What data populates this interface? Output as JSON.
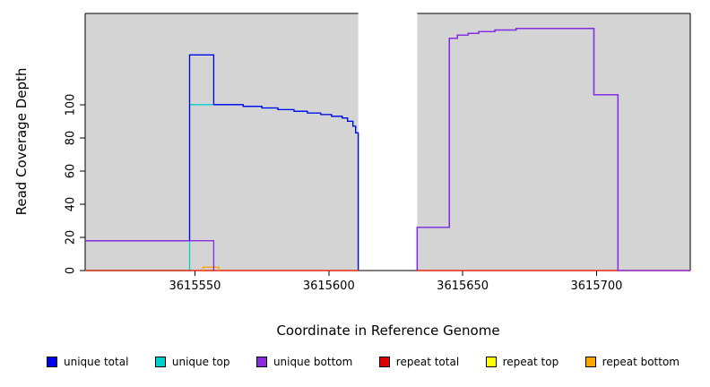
{
  "chart_data": {
    "type": "line",
    "subtype": "step-coverage",
    "xlabel": "Coordinate in Reference Genome",
    "ylabel": "Read Coverage Depth",
    "xlim": [
      3615509,
      3615735
    ],
    "ylim": [
      0,
      155
    ],
    "xticks": [
      3615550,
      3615600,
      3615650,
      3615700
    ],
    "yticks": [
      0,
      20,
      40,
      60,
      80,
      100
    ],
    "grid": false,
    "region_color": "#d4d4d4",
    "regions": [
      {
        "x0": 3615509,
        "x1": 3615611
      },
      {
        "x0": 3615633,
        "x1": 3615735
      }
    ],
    "series": [
      {
        "id": "unique-top",
        "name": "unique top",
        "color": "#00CDCD",
        "segments": [
          [
            [
              3615509,
              0
            ],
            [
              3615548,
              0
            ],
            [
              3615548,
              100
            ],
            [
              3615568,
              100
            ],
            [
              3615568,
              99
            ],
            [
              3615575,
              99
            ],
            [
              3615575,
              98
            ],
            [
              3615581,
              98
            ],
            [
              3615581,
              97
            ],
            [
              3615587,
              97
            ],
            [
              3615587,
              96
            ],
            [
              3615592,
              96
            ],
            [
              3615592,
              95
            ],
            [
              3615597,
              95
            ],
            [
              3615597,
              94
            ],
            [
              3615601,
              94
            ],
            [
              3615601,
              93
            ],
            [
              3615605,
              93
            ],
            [
              3615605,
              92
            ],
            [
              3615607,
              92
            ],
            [
              3615607,
              90
            ],
            [
              3615609,
              90
            ],
            [
              3615609,
              87
            ],
            [
              3615610,
              87
            ],
            [
              3615610,
              83
            ],
            [
              3615611,
              83
            ],
            [
              3615611,
              0
            ]
          ]
        ]
      },
      {
        "id": "unique-total",
        "name": "unique total",
        "color": "#0000EE",
        "segments": [
          [
            [
              3615509,
              18
            ],
            [
              3615548,
              18
            ],
            [
              3615548,
              130
            ],
            [
              3615557,
              130
            ],
            [
              3615557,
              100
            ],
            [
              3615568,
              100
            ],
            [
              3615568,
              99
            ],
            [
              3615575,
              99
            ],
            [
              3615575,
              98
            ],
            [
              3615581,
              98
            ],
            [
              3615581,
              97
            ],
            [
              3615587,
              97
            ],
            [
              3615587,
              96
            ],
            [
              3615592,
              96
            ],
            [
              3615592,
              95
            ],
            [
              3615597,
              95
            ],
            [
              3615597,
              94
            ],
            [
              3615601,
              94
            ],
            [
              3615601,
              93
            ],
            [
              3615605,
              93
            ],
            [
              3615605,
              92
            ],
            [
              3615607,
              92
            ],
            [
              3615607,
              90
            ],
            [
              3615609,
              90
            ],
            [
              3615609,
              87
            ],
            [
              3615610,
              87
            ],
            [
              3615610,
              83
            ],
            [
              3615611,
              83
            ],
            [
              3615611,
              0
            ]
          ],
          [
            [
              3615633,
              0
            ],
            [
              3615633,
              26
            ],
            [
              3615645,
              26
            ],
            [
              3615645,
              140
            ],
            [
              3615648,
              140
            ],
            [
              3615648,
              142
            ],
            [
              3615652,
              142
            ],
            [
              3615652,
              143
            ],
            [
              3615656,
              143
            ],
            [
              3615656,
              144
            ],
            [
              3615662,
              144
            ],
            [
              3615662,
              145
            ],
            [
              3615670,
              145
            ],
            [
              3615670,
              146
            ],
            [
              3615699,
              146
            ],
            [
              3615699,
              106
            ],
            [
              3615708,
              106
            ],
            [
              3615708,
              0
            ],
            [
              3615735,
              0
            ]
          ]
        ]
      },
      {
        "id": "repeat-top",
        "name": "repeat top",
        "color": "#FFFF00",
        "segments": [
          [
            [
              3615509,
              0
            ],
            [
              3615611,
              0
            ]
          ],
          [
            [
              3615633,
              0
            ],
            [
              3615735,
              0
            ]
          ]
        ]
      },
      {
        "id": "repeat-total",
        "name": "repeat total",
        "color": "#DD0000",
        "segments": [
          [
            [
              3615509,
              0
            ],
            [
              3615611,
              0
            ]
          ],
          [
            [
              3615633,
              0
            ],
            [
              3615735,
              0
            ]
          ]
        ]
      },
      {
        "id": "repeat-bottom",
        "name": "repeat bottom",
        "color": "#FFA500",
        "segments": [
          [
            [
              3615553,
              0
            ],
            [
              3615553,
              2
            ],
            [
              3615559,
              2
            ],
            [
              3615559,
              0
            ]
          ]
        ]
      },
      {
        "id": "unique-bottom",
        "name": "unique bottom",
        "color": "#8A2BE2",
        "segments": [
          [
            [
              3615509,
              18
            ],
            [
              3615557,
              18
            ],
            [
              3615557,
              0
            ]
          ],
          [
            [
              3615633,
              0
            ],
            [
              3615633,
              26
            ],
            [
              3615645,
              26
            ],
            [
              3615645,
              140
            ],
            [
              3615648,
              140
            ],
            [
              3615648,
              142
            ],
            [
              3615652,
              142
            ],
            [
              3615652,
              143
            ],
            [
              3615656,
              143
            ],
            [
              3615656,
              144
            ],
            [
              3615662,
              144
            ],
            [
              3615662,
              145
            ],
            [
              3615670,
              145
            ],
            [
              3615670,
              146
            ],
            [
              3615699,
              146
            ],
            [
              3615699,
              106
            ],
            [
              3615708,
              106
            ],
            [
              3615708,
              0
            ],
            [
              3615735,
              0
            ]
          ]
        ]
      }
    ],
    "legend": [
      {
        "label": "unique total",
        "color": "#0000EE"
      },
      {
        "label": "unique top",
        "color": "#00CDCD"
      },
      {
        "label": "unique bottom",
        "color": "#8A2BE2"
      },
      {
        "label": "repeat total",
        "color": "#DD0000"
      },
      {
        "label": "repeat top",
        "color": "#FFFF00"
      },
      {
        "label": "repeat bottom",
        "color": "#FFA500"
      }
    ]
  }
}
